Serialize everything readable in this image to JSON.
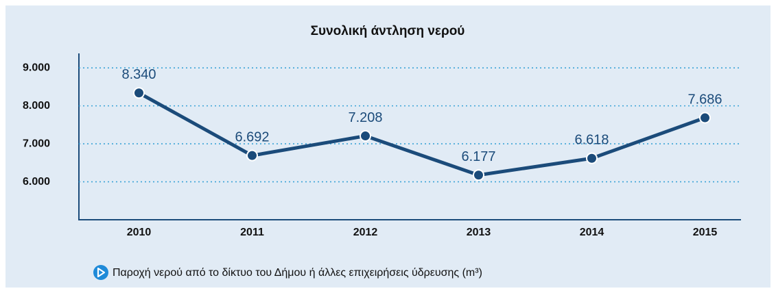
{
  "chart_data": {
    "type": "line",
    "title": "Συνολική άντληση νερού",
    "categories": [
      "2010",
      "2011",
      "2012",
      "2013",
      "2014",
      "2015"
    ],
    "series": [
      {
        "name": "Παροχή νερού από το δίκτυο του Δήμου ή άλλες επιχειρήσεις ύδρευσης (m³)",
        "color": "#1b4b7a",
        "values": [
          8340,
          6692,
          7208,
          6177,
          6618,
          7686
        ],
        "value_labels": [
          "8.340",
          "6.692",
          "7.208",
          "6.177",
          "6.618",
          "7.686"
        ]
      }
    ],
    "ylim": [
      5000,
      9400
    ],
    "yticks": [
      {
        "value": 6000,
        "label": "6.000"
      },
      {
        "value": 7000,
        "label": "7.000"
      },
      {
        "value": 8000,
        "label": "8.000"
      },
      {
        "value": 9000,
        "label": "9.000"
      }
    ],
    "grid": true
  }
}
